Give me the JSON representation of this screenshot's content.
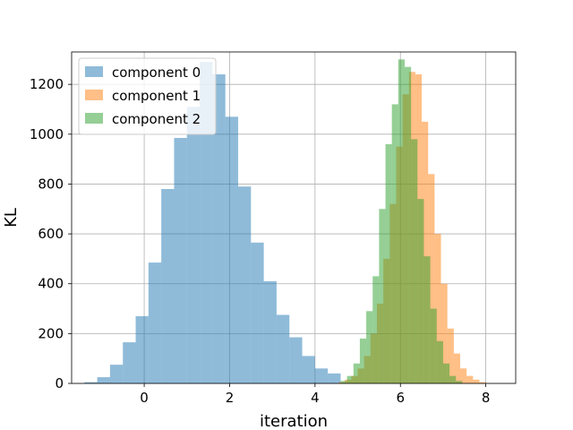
{
  "chart_data": {
    "type": "bar",
    "title": "",
    "xlabel": "iteration",
    "ylabel": "KL",
    "xlim": [
      -1.7,
      8.7
    ],
    "ylim": [
      0,
      1330
    ],
    "xticks": [
      0,
      2,
      4,
      6,
      8
    ],
    "yticks": [
      0,
      200,
      400,
      600,
      800,
      1000,
      1200
    ],
    "grid": true,
    "legend_position": "top-left",
    "series": [
      {
        "name": "component 0",
        "color": "#1f77b4",
        "alpha": 0.5,
        "bin_width": 0.3,
        "bin_starts": [
          -1.4,
          -1.1,
          -0.8,
          -0.5,
          -0.2,
          0.1,
          0.4,
          0.7,
          1.0,
          1.3,
          1.6,
          1.9,
          2.2,
          2.5,
          2.8,
          3.1,
          3.4,
          3.7,
          4.0,
          4.3
        ],
        "counts": [
          5,
          25,
          75,
          165,
          270,
          485,
          780,
          985,
          1110,
          1290,
          1240,
          1070,
          790,
          565,
          410,
          275,
          185,
          110,
          60,
          40
        ]
      },
      {
        "name": "component 1",
        "color": "#ff7f0e",
        "alpha": 0.5,
        "bin_width": 0.15,
        "bin_starts": [
          4.55,
          4.7,
          4.85,
          5.0,
          5.15,
          5.3,
          5.45,
          5.6,
          5.75,
          5.9,
          6.05,
          6.2,
          6.35,
          6.5,
          6.65,
          6.8,
          6.95,
          7.1,
          7.25,
          7.4,
          7.55,
          7.7,
          7.85
        ],
        "counts": [
          5,
          15,
          30,
          60,
          110,
          200,
          320,
          500,
          720,
          950,
          1160,
          1250,
          1240,
          1050,
          840,
          600,
          400,
          220,
          120,
          60,
          30,
          15,
          5
        ]
      },
      {
        "name": "component 2",
        "color": "#2ca02c",
        "alpha": 0.5,
        "bin_width": 0.15,
        "bin_starts": [
          4.6,
          4.75,
          4.9,
          5.05,
          5.2,
          5.35,
          5.5,
          5.65,
          5.8,
          5.95,
          6.1,
          6.25,
          6.4,
          6.55,
          6.7,
          6.85,
          7.0,
          7.15,
          7.3
        ],
        "counts": [
          10,
          30,
          80,
          180,
          290,
          430,
          700,
          960,
          1120,
          1300,
          1270,
          980,
          740,
          510,
          300,
          170,
          80,
          30,
          10
        ]
      }
    ]
  }
}
